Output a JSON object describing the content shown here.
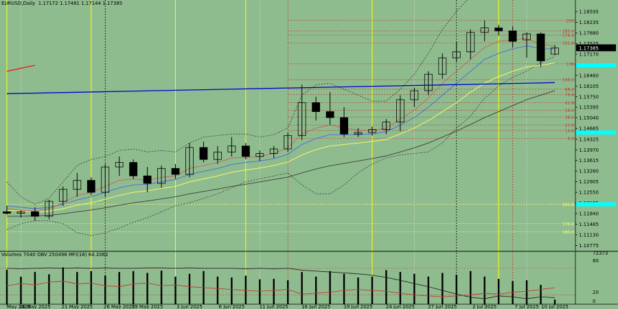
{
  "header": {
    "symbol": "EURUSD,Daily",
    "ohlc": "1.17172 1.17481 1.17144 1.17385"
  },
  "indicator_header": "Volumes 7040  OBV 250496  MFI(16) 64.2062",
  "colors": {
    "bg": "#8fbc8f",
    "bull": "#f5f5f5",
    "bear": "#000000",
    "fast_ma": "#cd5c5c",
    "mid_ma": "#4169e1",
    "slow_ma": "#ffff66",
    "long_ma": "#3a3a3a",
    "trend": "#0000cd",
    "marker": "#00ffff",
    "fib": "#c0392b"
  },
  "chart_data": {
    "type": "candlestick",
    "symbol": "EURUSD",
    "timeframe": "Daily",
    "ylim": [
      1.106,
      1.188
    ],
    "y_ticks": [
      "1.18595",
      "1.18235",
      "1.17880",
      "1.17525",
      "1.17170",
      "1.16815",
      "1.16460",
      "1.16105",
      "1.15750",
      "1.15395",
      "1.15040",
      "1.14685",
      "1.14325",
      "1.13970",
      "1.13615",
      "1.13260",
      "1.12905",
      "1.12550",
      "1.12195",
      "1.11840",
      "1.11485",
      "1.11130",
      "1.10775"
    ],
    "y_tick_values": [
      1.18595,
      1.18235,
      1.1788,
      1.17525,
      1.1717,
      1.16815,
      1.1646,
      1.16105,
      1.1575,
      1.15395,
      1.1504,
      1.14685,
      1.14325,
      1.1397,
      1.13615,
      1.1326,
      1.12905,
      1.1255,
      1.12195,
      1.1184,
      1.11485,
      1.1113,
      1.10775
    ],
    "x_labels": [
      "May 2025",
      "16 May 2025",
      "21 May 2025",
      "26 May 2025",
      "29 May 2025",
      "3 Jun 2025",
      "6 Jun 2025",
      "11 Jun 2025",
      "16 Jun 2025",
      "19 Jun 2025",
      "24 Jun 2025",
      "27 Jun 2025",
      "2 Jul 2025",
      "7 Jul 2025",
      "10 Jul 2025"
    ],
    "x_label_index": [
      0,
      2,
      5,
      8,
      10,
      13,
      16,
      19,
      22,
      25,
      28,
      31,
      34,
      37,
      39
    ],
    "current_price": "1.17385",
    "current_value": 1.17385,
    "candles": [
      {
        "o": 1.119,
        "h": 1.121,
        "l": 1.118,
        "c": 1.1185
      },
      {
        "o": 1.1185,
        "h": 1.1195,
        "l": 1.117,
        "c": 1.119
      },
      {
        "o": 1.119,
        "h": 1.1205,
        "l": 1.116,
        "c": 1.1175
      },
      {
        "o": 1.1175,
        "h": 1.123,
        "l": 1.1165,
        "c": 1.1225
      },
      {
        "o": 1.1225,
        "h": 1.1275,
        "l": 1.121,
        "c": 1.1265
      },
      {
        "o": 1.1265,
        "h": 1.132,
        "l": 1.124,
        "c": 1.1295
      },
      {
        "o": 1.1295,
        "h": 1.1305,
        "l": 1.1245,
        "c": 1.1255
      },
      {
        "o": 1.1255,
        "h": 1.135,
        "l": 1.124,
        "c": 1.134
      },
      {
        "o": 1.134,
        "h": 1.1375,
        "l": 1.131,
        "c": 1.1355
      },
      {
        "o": 1.1355,
        "h": 1.1365,
        "l": 1.13,
        "c": 1.131
      },
      {
        "o": 1.131,
        "h": 1.134,
        "l": 1.1255,
        "c": 1.1285
      },
      {
        "o": 1.1285,
        "h": 1.1345,
        "l": 1.127,
        "c": 1.1335
      },
      {
        "o": 1.1335,
        "h": 1.135,
        "l": 1.13,
        "c": 1.1315
      },
      {
        "o": 1.1315,
        "h": 1.142,
        "l": 1.1305,
        "c": 1.1405
      },
      {
        "o": 1.1405,
        "h": 1.1425,
        "l": 1.1355,
        "c": 1.1365
      },
      {
        "o": 1.1365,
        "h": 1.141,
        "l": 1.135,
        "c": 1.139
      },
      {
        "o": 1.139,
        "h": 1.144,
        "l": 1.1375,
        "c": 1.141
      },
      {
        "o": 1.141,
        "h": 1.142,
        "l": 1.1365,
        "c": 1.1375
      },
      {
        "o": 1.1375,
        "h": 1.1395,
        "l": 1.136,
        "c": 1.1385
      },
      {
        "o": 1.1385,
        "h": 1.141,
        "l": 1.137,
        "c": 1.14
      },
      {
        "o": 1.14,
        "h": 1.1455,
        "l": 1.139,
        "c": 1.1445
      },
      {
        "o": 1.1445,
        "h": 1.1615,
        "l": 1.143,
        "c": 1.1555
      },
      {
        "o": 1.1555,
        "h": 1.1575,
        "l": 1.1495,
        "c": 1.1525
      },
      {
        "o": 1.1525,
        "h": 1.159,
        "l": 1.148,
        "c": 1.1505
      },
      {
        "o": 1.1505,
        "h": 1.154,
        "l": 1.144,
        "c": 1.145
      },
      {
        "o": 1.145,
        "h": 1.147,
        "l": 1.144,
        "c": 1.1455
      },
      {
        "o": 1.1455,
        "h": 1.1475,
        "l": 1.1445,
        "c": 1.1465
      },
      {
        "o": 1.1465,
        "h": 1.15,
        "l": 1.145,
        "c": 1.149
      },
      {
        "o": 1.149,
        "h": 1.158,
        "l": 1.146,
        "c": 1.1565
      },
      {
        "o": 1.1565,
        "h": 1.1605,
        "l": 1.154,
        "c": 1.1595
      },
      {
        "o": 1.1595,
        "h": 1.166,
        "l": 1.158,
        "c": 1.165
      },
      {
        "o": 1.165,
        "h": 1.172,
        "l": 1.1635,
        "c": 1.1705
      },
      {
        "o": 1.1705,
        "h": 1.176,
        "l": 1.169,
        "c": 1.1725
      },
      {
        "o": 1.1725,
        "h": 1.18,
        "l": 1.17,
        "c": 1.179
      },
      {
        "o": 1.179,
        "h": 1.183,
        "l": 1.176,
        "c": 1.1805
      },
      {
        "o": 1.1805,
        "h": 1.1815,
        "l": 1.178,
        "c": 1.1795
      },
      {
        "o": 1.1795,
        "h": 1.181,
        "l": 1.174,
        "c": 1.176
      },
      {
        "o": 1.1765,
        "h": 1.179,
        "l": 1.1705,
        "c": 1.1785
      },
      {
        "o": 1.1785,
        "h": 1.179,
        "l": 1.1675,
        "c": 1.1695
      },
      {
        "o": 1.1717,
        "h": 1.1748,
        "l": 1.1714,
        "c": 1.1738
      }
    ],
    "volume": [
      0.75,
      0.6,
      0.7,
      0.65,
      0.8,
      0.7,
      0.72,
      0.62,
      0.7,
      0.72,
      0.68,
      0.73,
      0.6,
      0.66,
      0.72,
      0.6,
      0.58,
      0.62,
      0.54,
      0.55,
      0.52,
      0.7,
      0.6,
      0.72,
      0.66,
      0.58,
      0.6,
      0.74,
      0.7,
      0.66,
      0.6,
      0.68,
      0.64,
      0.72,
      0.6,
      0.55,
      0.5,
      0.52,
      0.42,
      0.1
    ],
    "indicator_axis": [
      "72373",
      "80",
      "20",
      "0"
    ],
    "fib_levels": [
      {
        "label": "200",
        "v": 1.183
      },
      {
        "label": "185.4",
        "v": 1.1795
      },
      {
        "label": "176.4",
        "v": 1.1781
      },
      {
        "label": "161.8",
        "v": 1.1755
      },
      {
        "label": "138",
        "v": 1.1685
      },
      {
        "label": "100.0",
        "v": 1.1632
      },
      {
        "label": "88.2",
        "v": 1.16
      },
      {
        "label": "76.4",
        "v": 1.1582
      },
      {
        "label": "61.8",
        "v": 1.1555
      },
      {
        "label": "50.0",
        "v": 1.153
      },
      {
        "label": "38.2",
        "v": 1.1507
      },
      {
        "label": "23.6",
        "v": 1.148
      },
      {
        "label": "14.6",
        "v": 1.1462
      },
      {
        "label": "0.0",
        "v": 1.1436
      }
    ],
    "lower_levels": [
      {
        "label": "161.8",
        "v": 1.1215
      },
      {
        "label": "176.4",
        "v": 1.115
      },
      {
        "label": "185.4",
        "v": 1.1123
      }
    ],
    "fast_ma": [
      1.12,
      1.1195,
      1.1192,
      1.12,
      1.122,
      1.1245,
      1.1255,
      1.1275,
      1.1295,
      1.13,
      1.1295,
      1.1305,
      1.131,
      1.1335,
      1.1345,
      1.1355,
      1.137,
      1.1372,
      1.1375,
      1.1385,
      1.1405,
      1.145,
      1.147,
      1.148,
      1.147,
      1.1463,
      1.1462,
      1.147,
      1.15,
      1.153,
      1.157,
      1.162,
      1.166,
      1.17,
      1.174,
      1.176,
      1.1765,
      1.177,
      1.175,
      1.1745
    ],
    "mid_ma": [
      1.121,
      1.1205,
      1.12,
      1.1205,
      1.1215,
      1.123,
      1.124,
      1.1255,
      1.127,
      1.128,
      1.1282,
      1.129,
      1.1298,
      1.1315,
      1.1325,
      1.1335,
      1.1348,
      1.1355,
      1.136,
      1.1368,
      1.1382,
      1.1415,
      1.1435,
      1.1448,
      1.1448,
      1.1448,
      1.145,
      1.1458,
      1.148,
      1.1505,
      1.154,
      1.158,
      1.162,
      1.166,
      1.17,
      1.172,
      1.1735,
      1.1745,
      1.1735,
      1.1735
    ],
    "slow_ma": [
      1.1195,
      1.1193,
      1.119,
      1.1192,
      1.12,
      1.1212,
      1.122,
      1.1232,
      1.1245,
      1.1255,
      1.126,
      1.1268,
      1.1275,
      1.129,
      1.13,
      1.131,
      1.1322,
      1.133,
      1.1336,
      1.1345,
      1.1356,
      1.138,
      1.1398,
      1.141,
      1.1415,
      1.142,
      1.1425,
      1.1432,
      1.145,
      1.147,
      1.1495,
      1.1525,
      1.1555,
      1.159,
      1.162,
      1.1642,
      1.166,
      1.1675,
      1.168,
      1.1688
    ],
    "long_ma": [
      1.1175,
      1.1175,
      1.1176,
      1.1178,
      1.1183,
      1.119,
      1.1196,
      1.1203,
      1.1212,
      1.122,
      1.1226,
      1.1233,
      1.124,
      1.125,
      1.1258,
      1.1266,
      1.1275,
      1.1282,
      1.129,
      1.1298,
      1.1306,
      1.132,
      1.1333,
      1.1344,
      1.1352,
      1.136,
      1.1368,
      1.1377,
      1.139,
      1.1404,
      1.142,
      1.144,
      1.146,
      1.1482,
      1.1505,
      1.1525,
      1.1545,
      1.1565,
      1.158,
      1.1595
    ],
    "bb_upper": [
      1.129,
      1.124,
      1.1215,
      1.1235,
      1.129,
      1.1345,
      1.1365,
      1.1375,
      1.1395,
      1.14,
      1.139,
      1.1395,
      1.139,
      1.142,
      1.144,
      1.1445,
      1.145,
      1.145,
      1.144,
      1.1448,
      1.147,
      1.158,
      1.1615,
      1.162,
      1.16,
      1.158,
      1.156,
      1.156,
      1.16,
      1.165,
      1.172,
      1.18,
      1.186,
      1.191,
      1.195,
      1.196,
      1.196,
      1.1955,
      1.1945,
      1.1935
    ],
    "bb_lower": [
      1.113,
      1.115,
      1.116,
      1.116,
      1.115,
      1.112,
      1.111,
      1.112,
      1.1135,
      1.1155,
      1.117,
      1.119,
      1.121,
      1.122,
      1.1235,
      1.125,
      1.127,
      1.129,
      1.13,
      1.131,
      1.132,
      1.128,
      1.125,
      1.125,
      1.128,
      1.132,
      1.135,
      1.137,
      1.138,
      1.1385,
      1.139,
      1.142,
      1.147,
      1.151,
      1.157,
      1.161,
      1.164,
      1.166,
      1.169,
      1.171
    ],
    "trend_line": {
      "from": {
        "i": 0,
        "v": 1.1585
      },
      "to": {
        "i": 39,
        "v": 1.1622
      }
    },
    "red_line": {
      "from": {
        "i": 0,
        "v": 1.166
      },
      "to": {
        "i": 2,
        "v": 1.168
      }
    },
    "vlines_yellow": [
      0,
      6,
      12,
      17,
      26,
      35
    ],
    "vlines_black": [
      7,
      32
    ],
    "vlines_red": [
      20,
      36
    ],
    "vlines_white": [
      1,
      18,
      29,
      37
    ],
    "obv": [
      0.78,
      0.77,
      0.78,
      0.79,
      0.78,
      0.79,
      0.78,
      0.79,
      0.78,
      0.78,
      0.79,
      0.79,
      0.78,
      0.79,
      0.78,
      0.78,
      0.78,
      0.77,
      0.78,
      0.77,
      0.78,
      0.74,
      0.72,
      0.7,
      0.68,
      0.66,
      0.63,
      0.58,
      0.52,
      0.45,
      0.38,
      0.3,
      0.22,
      0.15,
      0.12,
      0.18,
      0.16,
      0.12,
      0.16,
      0.14
    ],
    "mfi": [
      0.4,
      0.45,
      0.42,
      0.48,
      0.5,
      0.44,
      0.46,
      0.4,
      0.38,
      0.44,
      0.46,
      0.4,
      0.42,
      0.38,
      0.36,
      0.34,
      0.32,
      0.3,
      0.28,
      0.3,
      0.32,
      0.22,
      0.24,
      0.26,
      0.3,
      0.32,
      0.3,
      0.28,
      0.24,
      0.2,
      0.18,
      0.16,
      0.18,
      0.2,
      0.24,
      0.22,
      0.26,
      0.28,
      0.32,
      0.36
    ]
  }
}
